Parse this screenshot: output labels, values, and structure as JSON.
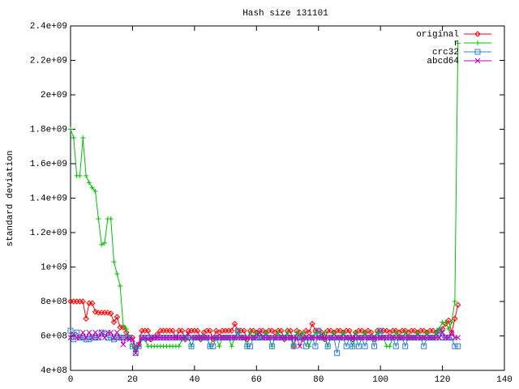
{
  "chart_data": {
    "type": "line",
    "title": "Hash size 131101",
    "ylabel": "standard deviation",
    "xlim": [
      0,
      140
    ],
    "xticks": [
      0,
      20,
      40,
      60,
      80,
      100,
      120,
      140
    ],
    "ylim": [
      400000000.0,
      2400000000.0
    ],
    "yticks": [
      {
        "value": 400000000.0,
        "label": "4e+08"
      },
      {
        "value": 600000000.0,
        "label": "6e+08"
      },
      {
        "value": 800000000.0,
        "label": "8e+08"
      },
      {
        "value": 1000000000.0,
        "label": "1e+09"
      },
      {
        "value": 1200000000.0,
        "label": "1.2e+09"
      },
      {
        "value": 1400000000.0,
        "label": "1.4e+09"
      },
      {
        "value": 1600000000.0,
        "label": "1.6e+09"
      },
      {
        "value": 1800000000.0,
        "label": "1.8e+09"
      },
      {
        "value": 2000000000.0,
        "label": "2e+09"
      },
      {
        "value": 2200000000.0,
        "label": "2.2e+09"
      },
      {
        "value": 2400000000.0,
        "label": "2.4e+09"
      }
    ],
    "legend": "top-right",
    "x": [
      0,
      1,
      2,
      3,
      4,
      5,
      6,
      7,
      8,
      9,
      10,
      11,
      12,
      13,
      14,
      15,
      16,
      17,
      18,
      19,
      20,
      21,
      22,
      23,
      24,
      25,
      26,
      27,
      28,
      29,
      30,
      31,
      32,
      33,
      34,
      35,
      36,
      37,
      38,
      39,
      40,
      41,
      42,
      43,
      44,
      45,
      46,
      47,
      48,
      49,
      50,
      51,
      52,
      53,
      54,
      55,
      56,
      57,
      58,
      59,
      60,
      61,
      62,
      63,
      64,
      65,
      66,
      67,
      68,
      69,
      70,
      71,
      72,
      73,
      74,
      75,
      76,
      77,
      78,
      79,
      80,
      81,
      82,
      83,
      84,
      85,
      86,
      87,
      88,
      89,
      90,
      91,
      92,
      93,
      94,
      95,
      96,
      97,
      98,
      99,
      100,
      101,
      102,
      103,
      104,
      105,
      106,
      107,
      108,
      109,
      110,
      111,
      112,
      113,
      114,
      115,
      116,
      117,
      118,
      119,
      120,
      121,
      122,
      123,
      124,
      125
    ],
    "series": [
      {
        "name": "original",
        "color": "#ff0000",
        "marker": "diamond",
        "values": [
          800000000.0,
          800000000.0,
          800000000.0,
          800000000.0,
          800000000.0,
          700000000.0,
          790000000.0,
          790000000.0,
          740000000.0,
          735000000.0,
          735000000.0,
          735000000.0,
          735000000.0,
          730000000.0,
          680000000.0,
          710000000.0,
          650000000.0,
          650000000.0,
          620000000.0,
          590000000.0,
          590000000.0,
          530000000.0,
          550000000.0,
          630000000.0,
          630000000.0,
          630000000.0,
          580000000.0,
          590000000.0,
          610000000.0,
          630000000.0,
          630000000.0,
          630000000.0,
          630000000.0,
          630000000.0,
          590000000.0,
          630000000.0,
          630000000.0,
          580000000.0,
          630000000.0,
          630000000.0,
          630000000.0,
          630000000.0,
          580000000.0,
          620000000.0,
          630000000.0,
          630000000.0,
          580000000.0,
          630000000.0,
          620000000.0,
          630000000.0,
          630000000.0,
          630000000.0,
          630000000.0,
          670000000.0,
          630000000.0,
          630000000.0,
          630000000.0,
          580000000.0,
          630000000.0,
          630000000.0,
          620000000.0,
          630000000.0,
          630000000.0,
          620000000.0,
          630000000.0,
          630000000.0,
          620000000.0,
          630000000.0,
          630000000.0,
          580000000.0,
          630000000.0,
          630000000.0,
          540000000.0,
          630000000.0,
          620000000.0,
          580000000.0,
          630000000.0,
          620000000.0,
          670000000.0,
          630000000.0,
          630000000.0,
          620000000.0,
          580000000.0,
          630000000.0,
          630000000.0,
          620000000.0,
          630000000.0,
          630000000.0,
          620000000.0,
          630000000.0,
          630000000.0,
          580000000.0,
          620000000.0,
          630000000.0,
          630000000.0,
          620000000.0,
          630000000.0,
          620000000.0,
          580000000.0,
          630000000.0,
          630000000.0,
          630000000.0,
          630000000.0,
          620000000.0,
          630000000.0,
          630000000.0,
          620000000.0,
          630000000.0,
          630000000.0,
          620000000.0,
          630000000.0,
          630000000.0,
          620000000.0,
          630000000.0,
          630000000.0,
          620000000.0,
          630000000.0,
          630000000.0,
          620000000.0,
          630000000.0,
          640000000.0,
          670000000.0,
          690000000.0,
          620000000.0,
          700000000.0,
          780000000.0
        ]
      },
      {
        "name": "r",
        "color": "#00c000",
        "marker": "plus",
        "values": [
          1800000000.0,
          1750000000.0,
          1530000000.0,
          1530000000.0,
          1750000000.0,
          1530000000.0,
          1490000000.0,
          1460000000.0,
          1440000000.0,
          1280000000.0,
          1130000000.0,
          1140000000.0,
          1280000000.0,
          1280000000.0,
          1030000000.0,
          960000000.0,
          890000000.0,
          660000000.0,
          640000000.0,
          590000000.0,
          540000000.0,
          520000000.0,
          540000000.0,
          580000000.0,
          580000000.0,
          540000000.0,
          540000000.0,
          540000000.0,
          540000000.0,
          540000000.0,
          540000000.0,
          540000000.0,
          540000000.0,
          540000000.0,
          540000000.0,
          540000000.0,
          580000000.0,
          590000000.0,
          590000000.0,
          540000000.0,
          590000000.0,
          590000000.0,
          590000000.0,
          590000000.0,
          590000000.0,
          540000000.0,
          590000000.0,
          590000000.0,
          540000000.0,
          590000000.0,
          590000000.0,
          590000000.0,
          540000000.0,
          590000000.0,
          620000000.0,
          590000000.0,
          590000000.0,
          540000000.0,
          620000000.0,
          590000000.0,
          620000000.0,
          590000000.0,
          590000000.0,
          620000000.0,
          590000000.0,
          540000000.0,
          590000000.0,
          620000000.0,
          590000000.0,
          590000000.0,
          620000000.0,
          590000000.0,
          540000000.0,
          620000000.0,
          590000000.0,
          620000000.0,
          590000000.0,
          540000000.0,
          590000000.0,
          620000000.0,
          590000000.0,
          590000000.0,
          620000000.0,
          540000000.0,
          590000000.0,
          620000000.0,
          590000000.0,
          590000000.0,
          620000000.0,
          590000000.0,
          590000000.0,
          540000000.0,
          620000000.0,
          590000000.0,
          590000000.0,
          620000000.0,
          590000000.0,
          590000000.0,
          590000000.0,
          620000000.0,
          590000000.0,
          590000000.0,
          540000000.0,
          540000000.0,
          590000000.0,
          620000000.0,
          590000000.0,
          590000000.0,
          620000000.0,
          590000000.0,
          590000000.0,
          590000000.0,
          620000000.0,
          590000000.0,
          590000000.0,
          620000000.0,
          590000000.0,
          590000000.0,
          620000000.0,
          640000000.0,
          680000000.0,
          680000000.0,
          640000000.0,
          680000000.0,
          800000000.0,
          2300000000.0
        ]
      },
      {
        "name": "crc32",
        "color": "#3080d0",
        "marker": "square",
        "values": [
          630000000.0,
          580000000.0,
          620000000.0,
          590000000.0,
          590000000.0,
          580000000.0,
          580000000.0,
          590000000.0,
          590000000.0,
          590000000.0,
          620000000.0,
          610000000.0,
          590000000.0,
          590000000.0,
          580000000.0,
          590000000.0,
          590000000.0,
          590000000.0,
          590000000.0,
          590000000.0,
          540000000.0,
          500000000.0,
          540000000.0,
          590000000.0,
          590000000.0,
          590000000.0,
          590000000.0,
          590000000.0,
          590000000.0,
          590000000.0,
          590000000.0,
          590000000.0,
          590000000.0,
          590000000.0,
          590000000.0,
          590000000.0,
          590000000.0,
          590000000.0,
          590000000.0,
          540000000.0,
          590000000.0,
          590000000.0,
          590000000.0,
          590000000.0,
          590000000.0,
          540000000.0,
          540000000.0,
          590000000.0,
          590000000.0,
          590000000.0,
          590000000.0,
          590000000.0,
          590000000.0,
          590000000.0,
          630000000.0,
          590000000.0,
          590000000.0,
          540000000.0,
          540000000.0,
          590000000.0,
          590000000.0,
          590000000.0,
          590000000.0,
          590000000.0,
          590000000.0,
          540000000.0,
          590000000.0,
          590000000.0,
          590000000.0,
          590000000.0,
          590000000.0,
          590000000.0,
          540000000.0,
          590000000.0,
          590000000.0,
          590000000.0,
          540000000.0,
          590000000.0,
          590000000.0,
          540000000.0,
          630000000.0,
          590000000.0,
          590000000.0,
          540000000.0,
          590000000.0,
          590000000.0,
          500000000.0,
          590000000.0,
          590000000.0,
          540000000.0,
          590000000.0,
          540000000.0,
          590000000.0,
          540000000.0,
          590000000.0,
          540000000.0,
          590000000.0,
          590000000.0,
          540000000.0,
          590000000.0,
          630000000.0,
          590000000.0,
          590000000.0,
          590000000.0,
          590000000.0,
          540000000.0,
          590000000.0,
          590000000.0,
          540000000.0,
          590000000.0,
          590000000.0,
          590000000.0,
          590000000.0,
          590000000.0,
          540000000.0,
          590000000.0,
          590000000.0,
          590000000.0,
          590000000.0,
          630000000.0,
          590000000.0,
          590000000.0,
          590000000.0,
          590000000.0,
          540000000.0,
          540000000.0
        ]
      },
      {
        "name": "abcd64",
        "color": "#c000c0",
        "marker": "cross",
        "values": [
          590000000.0,
          610000000.0,
          590000000.0,
          590000000.0,
          620000000.0,
          590000000.0,
          620000000.0,
          590000000.0,
          620000000.0,
          590000000.0,
          620000000.0,
          590000000.0,
          620000000.0,
          620000000.0,
          590000000.0,
          620000000.0,
          590000000.0,
          550000000.0,
          590000000.0,
          580000000.0,
          580000000.0,
          500000000.0,
          550000000.0,
          590000000.0,
          590000000.0,
          580000000.0,
          590000000.0,
          590000000.0,
          590000000.0,
          590000000.0,
          590000000.0,
          590000000.0,
          590000000.0,
          590000000.0,
          590000000.0,
          590000000.0,
          590000000.0,
          590000000.0,
          610000000.0,
          590000000.0,
          590000000.0,
          590000000.0,
          590000000.0,
          590000000.0,
          590000000.0,
          590000000.0,
          590000000.0,
          590000000.0,
          590000000.0,
          590000000.0,
          590000000.0,
          590000000.0,
          590000000.0,
          590000000.0,
          590000000.0,
          590000000.0,
          590000000.0,
          590000000.0,
          590000000.0,
          590000000.0,
          590000000.0,
          620000000.0,
          590000000.0,
          590000000.0,
          590000000.0,
          590000000.0,
          590000000.0,
          590000000.0,
          590000000.0,
          590000000.0,
          590000000.0,
          590000000.0,
          590000000.0,
          590000000.0,
          540000000.0,
          590000000.0,
          590000000.0,
          590000000.0,
          590000000.0,
          590000000.0,
          590000000.0,
          590000000.0,
          590000000.0,
          590000000.0,
          590000000.0,
          590000000.0,
          590000000.0,
          590000000.0,
          590000000.0,
          590000000.0,
          590000000.0,
          590000000.0,
          590000000.0,
          590000000.0,
          590000000.0,
          590000000.0,
          590000000.0,
          590000000.0,
          590000000.0,
          590000000.0,
          590000000.0,
          590000000.0,
          590000000.0,
          590000000.0,
          590000000.0,
          590000000.0,
          590000000.0,
          590000000.0,
          590000000.0,
          590000000.0,
          590000000.0,
          590000000.0,
          590000000.0,
          590000000.0,
          590000000.0,
          590000000.0,
          590000000.0,
          590000000.0,
          590000000.0,
          590000000.0,
          620000000.0,
          590000000.0,
          590000000.0,
          620000000.0,
          590000000.0,
          590000000.0
        ]
      }
    ]
  }
}
